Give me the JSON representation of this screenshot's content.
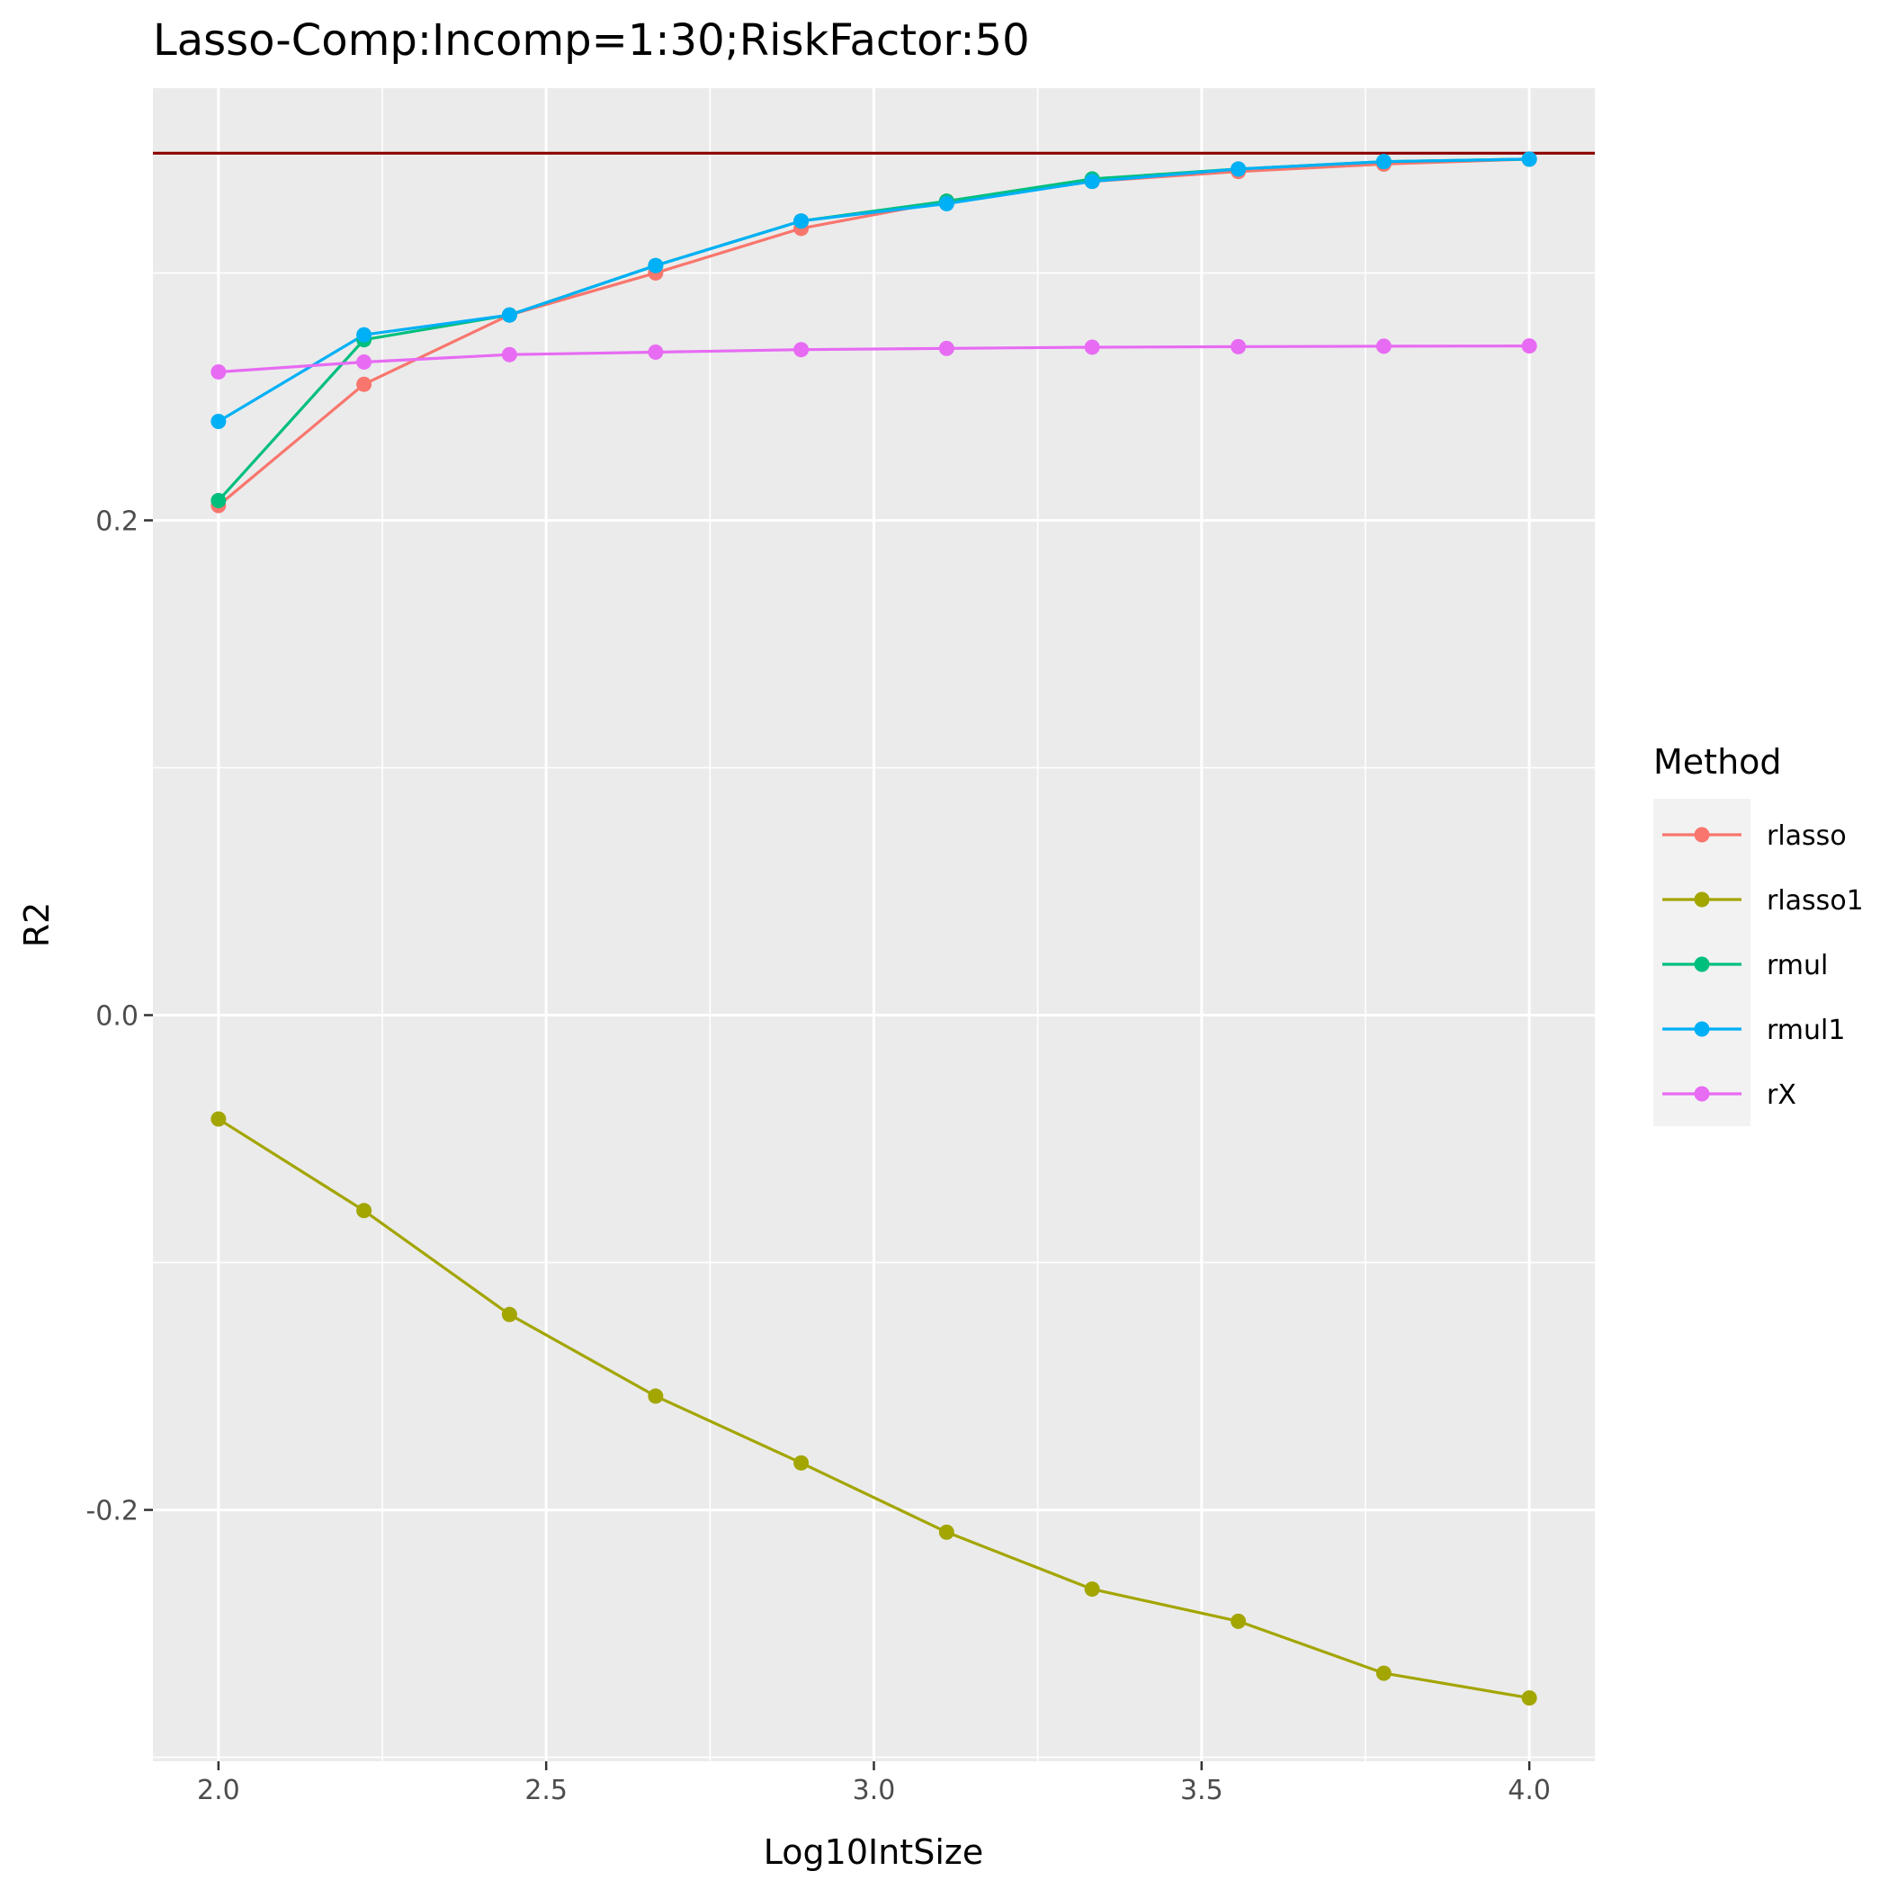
{
  "chart_data": {
    "type": "line",
    "title": "Lasso-Comp:Incomp=1:30;RiskFactor:50",
    "xlabel": "Log10IntSize",
    "ylabel": "R2",
    "xlim": [
      1.9,
      4.1
    ],
    "ylim": [
      -0.3016,
      0.3747
    ],
    "x_ticks": [
      2.0,
      2.5,
      3.0,
      3.5,
      4.0
    ],
    "x_tick_labels": [
      "2.0",
      "2.5",
      "3.0",
      "3.5",
      "4.0"
    ],
    "y_ticks": [
      -0.2,
      0.0,
      0.2
    ],
    "y_tick_labels": [
      "-0.2",
      "0.0",
      "0.2"
    ],
    "grid": true,
    "x": [
      2.0,
      2.222,
      2.444,
      2.667,
      2.889,
      3.111,
      3.333,
      3.556,
      3.778,
      4.0
    ],
    "reference_line": {
      "y": 0.3484,
      "color": "#8b0000"
    },
    "legend": {
      "title": "Method",
      "position": "right"
    },
    "series": [
      {
        "name": "rlasso",
        "color": "#F8766D",
        "values": [
          0.206,
          0.255,
          0.283,
          0.3,
          0.318,
          0.329,
          0.337,
          0.341,
          0.344,
          0.346
        ]
      },
      {
        "name": "rlasso1",
        "color": "#A3A500",
        "values": [
          -0.042,
          -0.079,
          -0.121,
          -0.154,
          -0.181,
          -0.209,
          -0.232,
          -0.245,
          -0.266,
          -0.276
        ]
      },
      {
        "name": "rmul",
        "color": "#00BF7D",
        "values": [
          0.208,
          0.273,
          0.283,
          0.303,
          0.321,
          0.329,
          0.338,
          0.342,
          0.345,
          0.346
        ]
      },
      {
        "name": "rmul1",
        "color": "#00B0F6",
        "values": [
          0.24,
          0.275,
          0.283,
          0.303,
          0.321,
          0.328,
          0.337,
          0.342,
          0.345,
          0.346
        ]
      },
      {
        "name": "rX",
        "color": "#E76BF3",
        "values": [
          0.26,
          0.264,
          0.267,
          0.268,
          0.269,
          0.2695,
          0.27,
          0.2702,
          0.2704,
          0.2705
        ]
      }
    ]
  }
}
